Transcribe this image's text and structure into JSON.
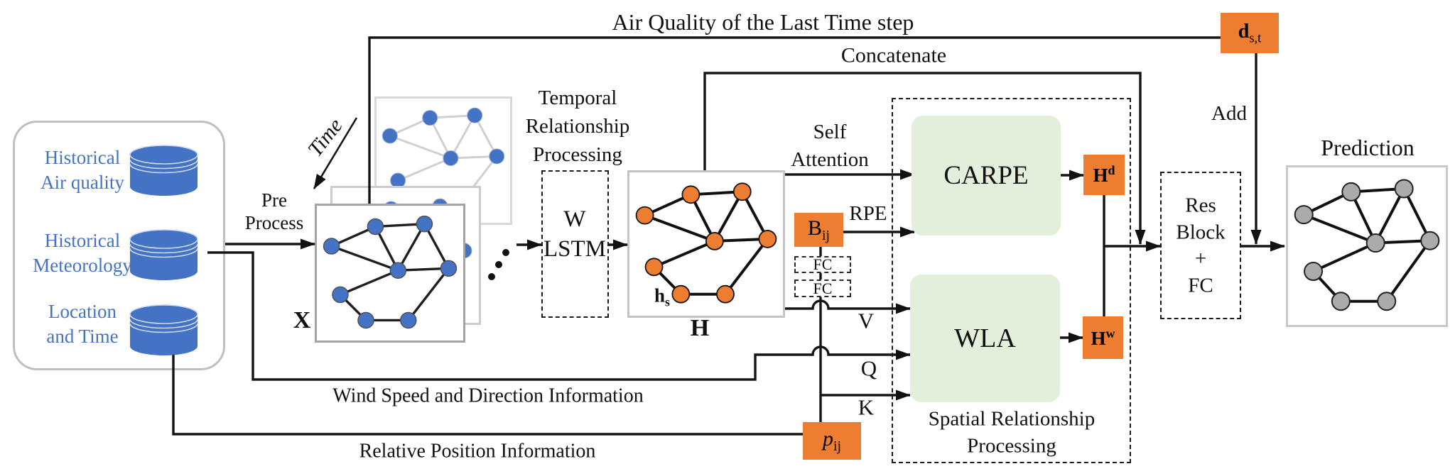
{
  "figure": {
    "colors": {
      "blue": "#4472C4",
      "orange": "#ED7D31",
      "green": "#E3EFDA",
      "gray_node": "#ABABAB"
    },
    "top_labels": {
      "air_quality": "Air Quality of the Last Time step",
      "concatenate": "Concatenate",
      "add": "Add"
    },
    "inputs": {
      "items": [
        {
          "line1": "Historical",
          "line2": "Air quality"
        },
        {
          "line1": "Historical",
          "line2": "Meteorology"
        },
        {
          "line1": "Location",
          "line2": "and Time"
        }
      ]
    },
    "preprocess": {
      "line1": "Pre",
      "line2": "Process"
    },
    "time_label": "Time",
    "temporal": {
      "line1": "Temporal",
      "line2": "Relationship",
      "line3": "Processing"
    },
    "lstm": {
      "line1": "W",
      "line2": "LSTM"
    },
    "x_label": "X",
    "h_label": "H",
    "hs": {
      "base": "h",
      "sub": "s"
    },
    "self_attention": {
      "line1": "Self",
      "line2": "Attention"
    },
    "rpe": "RPE",
    "bij": {
      "base": "B",
      "sub": "ij"
    },
    "fc1": "FC",
    "fc2": "FC",
    "v": "V",
    "q": "Q",
    "k": "K",
    "carpe": "CARPE",
    "wla": "WLA",
    "spatial": {
      "line1": "Spatial Relationship",
      "line2": "Processing"
    },
    "hd": {
      "base": "H",
      "sup": "d"
    },
    "hw": {
      "base": "H",
      "sup": "w"
    },
    "res": {
      "line1": "Res",
      "line2": "Block",
      "line3": "+",
      "line4": "FC"
    },
    "dst": {
      "base": "d",
      "sub": "s,t"
    },
    "pij": {
      "base": "p",
      "sub": "ij"
    },
    "wind_label": "Wind Speed and Direction Information",
    "relative_label": "Relative Position Information",
    "prediction_label": "Prediction",
    "graph": {
      "nodes": [
        [
          0.1,
          0.3
        ],
        [
          0.4,
          0.155
        ],
        [
          0.735,
          0.135
        ],
        [
          0.555,
          0.48
        ],
        [
          0.9,
          0.465
        ],
        [
          0.16,
          0.66
        ],
        [
          0.335,
          0.85
        ],
        [
          0.625,
          0.85
        ]
      ],
      "edges": [
        [
          0,
          1
        ],
        [
          1,
          2
        ],
        [
          1,
          3
        ],
        [
          2,
          3
        ],
        [
          2,
          4
        ],
        [
          0,
          3
        ],
        [
          3,
          4
        ],
        [
          3,
          5
        ],
        [
          5,
          6
        ],
        [
          6,
          7
        ],
        [
          7,
          4
        ]
      ]
    }
  }
}
